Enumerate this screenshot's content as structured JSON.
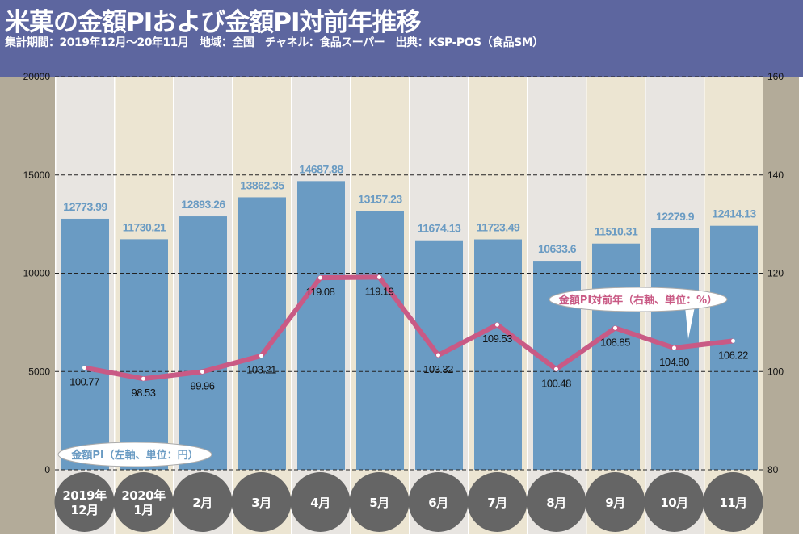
{
  "header": {
    "title": "米菓の金額PIおよび金額PI対前年推移",
    "subtitle": "集計期間：2019年12月～20年11月　地域：全国　チャネル：食品スーパー　出典：KSP-POS（食品SM）"
  },
  "chart_data": {
    "type": "bar+line",
    "categories": [
      [
        "2019年",
        "12月"
      ],
      [
        "2020年",
        "1月"
      ],
      [
        "2月"
      ],
      [
        "3月"
      ],
      [
        "4月"
      ],
      [
        "5月"
      ],
      [
        "6月"
      ],
      [
        "7月"
      ],
      [
        "8月"
      ],
      [
        "9月"
      ],
      [
        "10月"
      ],
      [
        "11月"
      ]
    ],
    "series": [
      {
        "name": "金額PI（左軸、単位：円）",
        "type": "bar",
        "axis": "left",
        "values": [
          12773.99,
          11730.21,
          12893.26,
          13862.35,
          14687.88,
          13157.23,
          11674.13,
          11723.49,
          10633.6,
          11510.31,
          12279.9,
          12414.13
        ],
        "labels": [
          "12773.99",
          "11730.21",
          "12893.26",
          "13862.35",
          "14687.88",
          "13157.23",
          "11674.13",
          "11723.49",
          "10633.6",
          "11510.31",
          "12279.9",
          "12414.13"
        ]
      },
      {
        "name": "金額PI対前年（右軸、単位：%）",
        "type": "line",
        "axis": "right",
        "values": [
          100.77,
          98.53,
          99.96,
          103.21,
          119.08,
          119.19,
          103.32,
          109.53,
          100.48,
          108.85,
          104.8,
          106.22
        ],
        "labels": [
          "100.77",
          "98.53",
          "99.96",
          "103.21",
          "119.08",
          "119.19",
          "103.32",
          "109.53",
          "100.48",
          "108.85",
          "104.80",
          "106.22"
        ]
      }
    ],
    "left_axis": {
      "ylim": [
        0,
        20000
      ],
      "ticks": [
        "0",
        "5000",
        "10000",
        "15000",
        "20000"
      ]
    },
    "right_axis": {
      "ylim": [
        80,
        160
      ],
      "ticks": [
        "80",
        "100",
        "120",
        "140",
        "160"
      ]
    },
    "grid": true,
    "colors": {
      "bar": "#6a9bc3",
      "bar_label": "#6a9bc3",
      "line": "#c95a85",
      "header": "#5d669f",
      "axis_band": "#b3ab99",
      "category_circle": "#656565"
    }
  }
}
